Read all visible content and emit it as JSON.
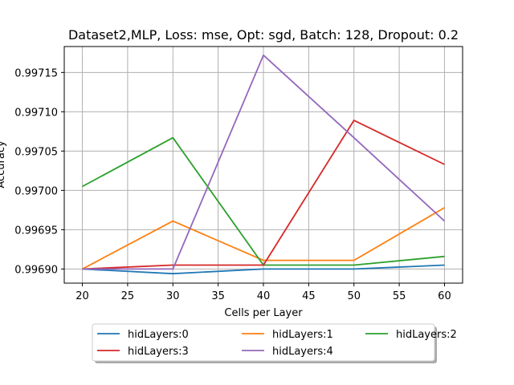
{
  "chart_data": {
    "type": "line",
    "title": "Dataset2,MLP, Loss: mse, Opt: sgd, Batch: 128, Dropout: 0.2",
    "xlabel": "Cells per Layer",
    "ylabel": "Accuracy",
    "x": [
      20,
      30,
      40,
      50,
      60
    ],
    "xlim": [
      18,
      62
    ],
    "ylim": [
      0.996882,
      0.997183
    ],
    "xticks": [
      "20",
      "25",
      "30",
      "35",
      "40",
      "45",
      "50",
      "55",
      "60"
    ],
    "yticks": [
      "0.99690",
      "0.99695",
      "0.99700",
      "0.99705",
      "0.99710",
      "0.99715"
    ],
    "grid": true,
    "legend_position": "below plot, 3 columns",
    "series": [
      {
        "name": "hidLayers:0",
        "color": "#1f77b4",
        "values": [
          0.9969,
          0.996894,
          0.9969,
          0.9969,
          0.996905
        ]
      },
      {
        "name": "hidLayers:1",
        "color": "#ff7f0e",
        "values": [
          0.9969,
          0.996961,
          0.996911,
          0.996911,
          0.996978
        ]
      },
      {
        "name": "hidLayers:2",
        "color": "#2ca02c",
        "values": [
          0.997005,
          0.997067,
          0.996905,
          0.996905,
          0.996916
        ]
      },
      {
        "name": "hidLayers:3",
        "color": "#d62728",
        "values": [
          0.9969,
          0.996905,
          0.996905,
          0.997089,
          0.997033
        ]
      },
      {
        "name": "hidLayers:4",
        "color": "#9467bd",
        "values": [
          0.9969,
          0.9969,
          0.997172,
          0.997067,
          0.996961
        ]
      }
    ]
  }
}
